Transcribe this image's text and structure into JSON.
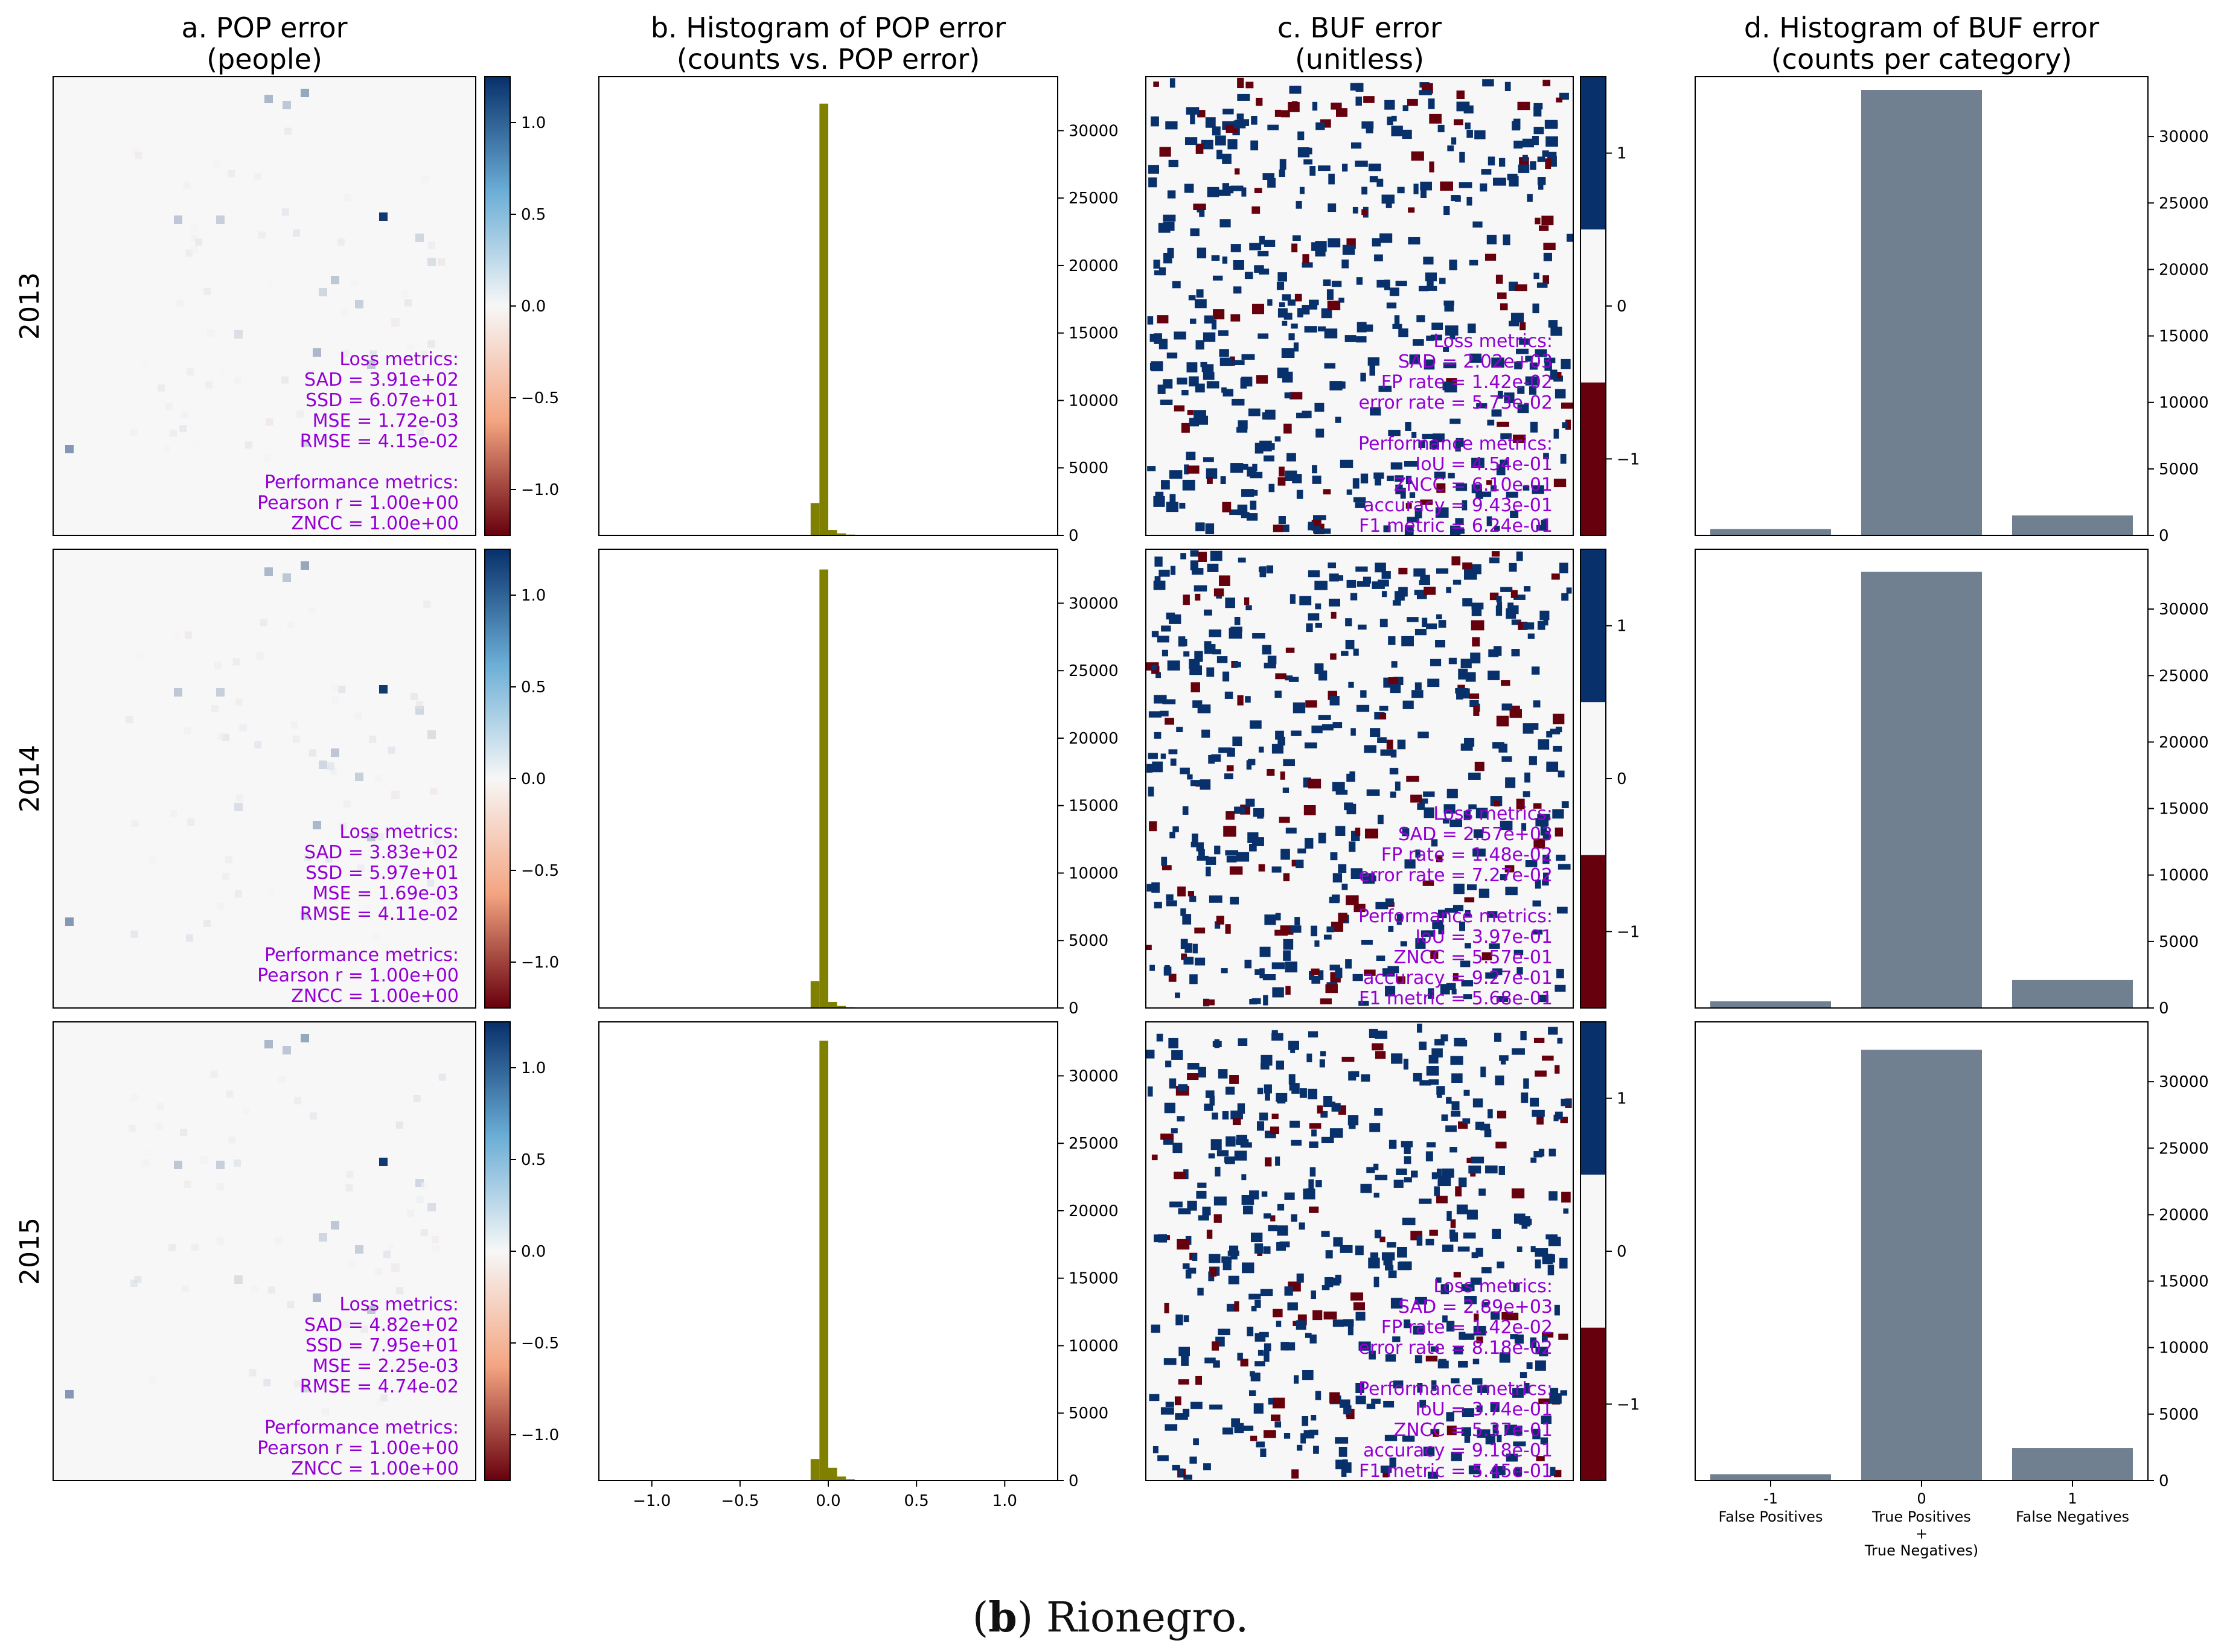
{
  "caption": {
    "letter": "b",
    "text": "Rionegro."
  },
  "column_titles": [
    {
      "line1": "a. POP error",
      "line2": "(people)"
    },
    {
      "line1": "b. Histogram of POP error",
      "line2": "(counts vs. POP error)"
    },
    {
      "line1": "c. BUF error",
      "line2": "(unitless)"
    },
    {
      "line1": "d. Histogram of BUF error",
      "line2": "(counts per category)"
    }
  ],
  "years": [
    "2013",
    "2014",
    "2015"
  ],
  "colors": {
    "metrics_text": "#9400d3",
    "hist_bar": "#808000",
    "buf_bar": "#708090",
    "buf_map_pos": "#08306b",
    "buf_map_neg": "#67000d",
    "map_bg": "#f7f7f7"
  },
  "pop_colorbar": {
    "ticks": [
      "1.0",
      "0.5",
      "0.0",
      "−0.5",
      "−1.0"
    ],
    "tick_values": [
      1.0,
      0.5,
      0.0,
      -0.5,
      -1.0
    ],
    "range": [
      -1.25,
      1.25
    ]
  },
  "buf_colorbar": {
    "ticks": [
      "1",
      "0",
      "−1"
    ],
    "tick_values": [
      1,
      0,
      -1
    ],
    "range": [
      -1.5,
      1.5
    ]
  },
  "labels": {
    "loss": "Loss metrics:",
    "perf": "Performance metrics:"
  },
  "pop_metrics": [
    {
      "loss": [
        "SAD = 3.91e+02",
        "SSD = 6.07e+01",
        "MSE = 1.72e-03",
        "RMSE = 4.15e-02"
      ],
      "perf": [
        "Pearson r = 1.00e+00",
        "ZNCC = 1.00e+00"
      ]
    },
    {
      "loss": [
        "SAD = 3.83e+02",
        "SSD = 5.97e+01",
        "MSE = 1.69e-03",
        "RMSE = 4.11e-02"
      ],
      "perf": [
        "Pearson r = 1.00e+00",
        "ZNCC = 1.00e+00"
      ]
    },
    {
      "loss": [
        "SAD = 4.82e+02",
        "SSD = 7.95e+01",
        "MSE = 2.25e-03",
        "RMSE = 4.74e-02"
      ],
      "perf": [
        "Pearson r = 1.00e+00",
        "ZNCC = 1.00e+00"
      ]
    }
  ],
  "buf_metrics": [
    {
      "loss": [
        "SAD = 2.02e+03",
        "FP rate = 1.42e-02",
        "error rate = 5.73e-02"
      ],
      "perf": [
        "IoU = 4.54e-01",
        "ZNCC = 6.10e-01",
        "accuracy = 9.43e-01",
        "F1 metric = 6.24e-01"
      ]
    },
    {
      "loss": [
        "SAD = 2.57e+03",
        "FP rate = 1.48e-02",
        "error rate = 7.27e-02"
      ],
      "perf": [
        "IoU = 3.97e-01",
        "ZNCC = 5.57e-01",
        "accuracy = 9.27e-01",
        "F1 metric = 5.68e-01"
      ]
    },
    {
      "loss": [
        "SAD = 2.89e+03",
        "FP rate = 1.42e-02",
        "error rate = 8.18e-02"
      ],
      "perf": [
        "IoU = 3.74e-01",
        "ZNCC = 5.37e-01",
        "accuracy = 9.18e-01",
        "F1 metric = 5.45e-01"
      ]
    }
  ],
  "chart_data": [
    {
      "type": "histogram",
      "title": "b. Histogram of POP error (counts vs. POP error)",
      "xlim": [
        -1.3,
        1.3
      ],
      "ylim": [
        0,
        34000
      ],
      "x_ticks": [
        -1.0,
        -0.5,
        0.0,
        0.5,
        1.0
      ],
      "x_tick_labels": [
        "−1.0",
        "−0.5",
        "0.0",
        "0.5",
        "1.0"
      ],
      "y_ticks": [
        0,
        5000,
        10000,
        15000,
        20000,
        25000,
        30000
      ],
      "bin_edges": [
        -0.1,
        -0.05,
        0.0,
        0.05,
        0.1,
        0.15,
        0.2,
        0.25
      ],
      "series": [
        {
          "name": "2013",
          "counts": [
            2400,
            32000,
            400,
            150,
            60,
            30,
            15
          ]
        },
        {
          "name": "2014",
          "counts": [
            2000,
            32500,
            450,
            150,
            60,
            30,
            15
          ]
        },
        {
          "name": "2015",
          "counts": [
            1600,
            32600,
            950,
            300,
            100,
            40,
            20
          ]
        }
      ]
    },
    {
      "type": "bar",
      "title": "d. Histogram of BUF error (counts per category)",
      "categories": [
        "-1",
        "0",
        "1"
      ],
      "category_labels": [
        "False Positives",
        "True Positives + True Negatives)",
        "False Negatives"
      ],
      "ylim": [
        0,
        34500
      ],
      "y_ticks": [
        0,
        5000,
        10000,
        15000,
        20000,
        25000,
        30000
      ],
      "series": [
        {
          "name": "2013",
          "values": [
            480,
            33500,
            1500
          ]
        },
        {
          "name": "2014",
          "values": [
            500,
            32800,
            2100
          ]
        },
        {
          "name": "2015",
          "values": [
            480,
            32400,
            2450
          ]
        }
      ]
    }
  ]
}
